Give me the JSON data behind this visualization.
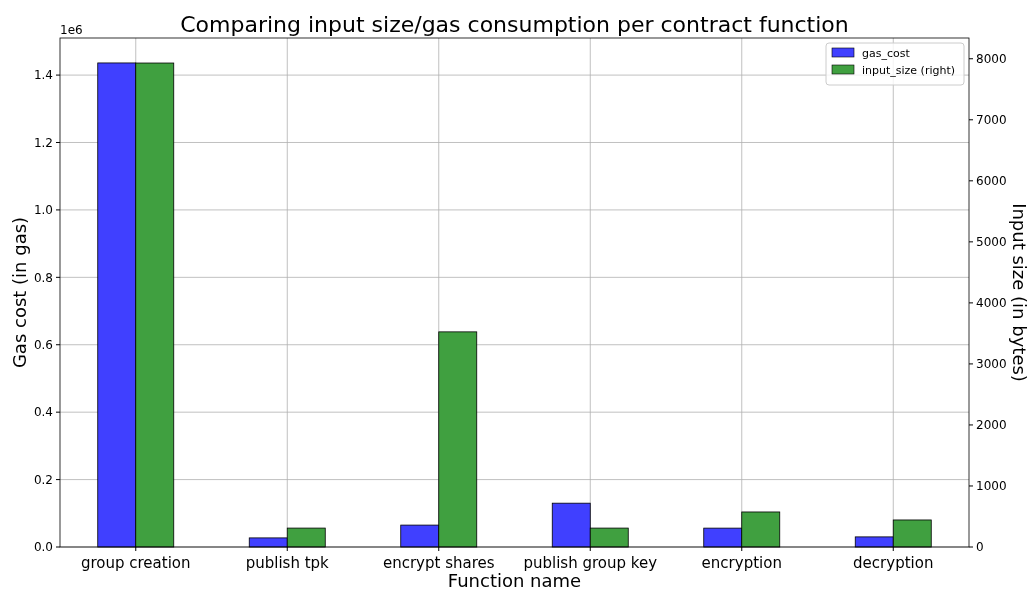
{
  "chart_data": {
    "type": "bar",
    "title": "Comparing input size/gas consumption per contract function",
    "xlabel": "Function name",
    "ylabel": "Gas cost (in gas)",
    "y2label": "Input size (in bytes)",
    "categories": [
      "group creation",
      "publish tpk",
      "encrypt shares",
      "publish group key",
      "encryption",
      "decryption"
    ],
    "series": [
      {
        "name": "gas_cost",
        "color": "#4040ff",
        "values": [
          1.436,
          0.027,
          0.065,
          0.13,
          0.056,
          0.03
        ]
      },
      {
        "name": "input_size (right)",
        "color": "#40a040",
        "axis": "y2",
        "values": [
          7930,
          310,
          3525,
          310,
          574,
          443
        ]
      }
    ],
    "ylim": [
      0,
      1.51
    ],
    "yticks": [
      {
        "value": 0,
        "label": "0.0"
      },
      {
        "value": 0.2,
        "label": "0.2"
      },
      {
        "value": 0.4,
        "label": "0.4"
      },
      {
        "value": 0.6,
        "label": "0.6"
      },
      {
        "value": 0.8,
        "label": "0.8"
      },
      {
        "value": 1,
        "label": "1.0"
      },
      {
        "value": 1.2,
        "label": "1.2"
      },
      {
        "value": 1.4,
        "label": "1.4"
      }
    ],
    "y2lim": [
      0,
      8340
    ],
    "y2ticks": [
      0,
      1000,
      2000,
      3000,
      4000,
      5000,
      6000,
      7000,
      8000
    ],
    "annotations": [
      "1e6"
    ],
    "grid": true,
    "legend": "top right"
  }
}
